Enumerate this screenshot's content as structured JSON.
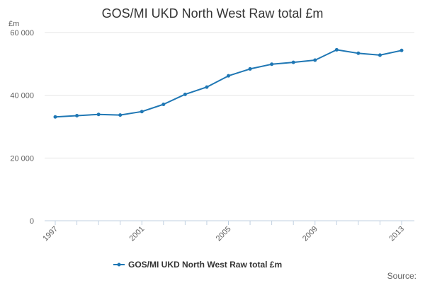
{
  "chart_data": {
    "type": "line",
    "title": "GOS/MI UKD North West Raw total £m",
    "ylabel": "£m",
    "xlabel": "",
    "ylim": [
      0,
      60000
    ],
    "yticks": [
      0,
      20000,
      40000,
      60000
    ],
    "ytick_labels": [
      "0",
      "20 000",
      "40 000",
      "60 000"
    ],
    "xlim": [
      1997,
      2013
    ],
    "xticks": [
      1997,
      2001,
      2005,
      2009,
      2013
    ],
    "xtick_labels": [
      "1997",
      "2001",
      "2005",
      "2009",
      "2013"
    ],
    "grid": true,
    "legend_position": "bottom",
    "series": [
      {
        "name": "GOS/MI UKD North West Raw total £m",
        "color": "#1f77b4",
        "x": [
          1997,
          1998,
          1999,
          2000,
          2001,
          2002,
          2003,
          2004,
          2005,
          2006,
          2007,
          2008,
          2009,
          2010,
          2011,
          2012,
          2013
        ],
        "values": [
          33100,
          33500,
          33900,
          33700,
          34800,
          37100,
          40300,
          42600,
          46200,
          48400,
          49900,
          50500,
          51200,
          54500,
          53400,
          52800,
          54300
        ]
      }
    ],
    "source": "Source:"
  }
}
